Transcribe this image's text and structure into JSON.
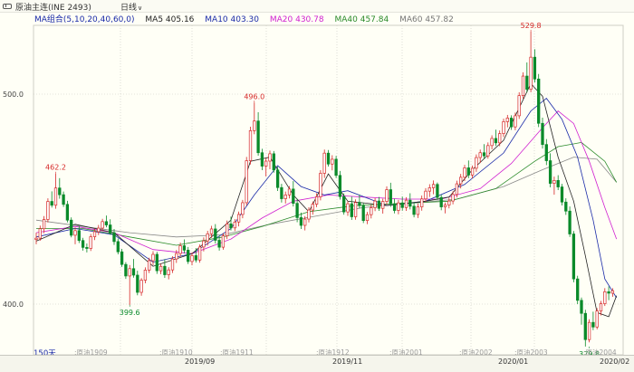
{
  "toolbar": {
    "title": "原油主连(INE 2493)",
    "period": "日线",
    "chevron": "chevron-down-icon",
    "grip_icon": "panel-grip-icon"
  },
  "legend": {
    "group": "MA组合(5,10,20,40,60,0)",
    "ma5": "MA5 405.16",
    "ma10": "MA10 403.30",
    "ma20": "MA20 430.78",
    "ma40": "MA40 457.84",
    "ma60": "MA60 457.82"
  },
  "colors": {
    "up": "#d62828",
    "down": "#0a8a2a",
    "ma5": "#222222",
    "ma10": "#1a2aa8",
    "ma20": "#d020d0",
    "ma40": "#2a8a2a",
    "ma60": "#888888"
  },
  "days_label": "150天",
  "vlabels": [
    {
      "text": "原油1909"
    },
    {
      "text": "原油1910"
    },
    {
      "text": "原油1911"
    },
    {
      "text": "原油1912"
    },
    {
      "text": "原油2001"
    },
    {
      "text": "原油2002"
    },
    {
      "text": "原油2003"
    },
    {
      "text": "原油2004"
    }
  ],
  "chart_data": {
    "type": "candlestick",
    "y_axis": {
      "ticks": [
        {
          "value": 500,
          "label": "500.0"
        },
        {
          "value": 400,
          "label": "400.0"
        }
      ]
    },
    "date_labels": [
      "2019/09",
      "2019/11",
      "2020/01",
      "2020/02"
    ],
    "annotations": [
      {
        "text": "462.2",
        "value": 462.2,
        "index": 5,
        "color": "#d62828",
        "pos": "above"
      },
      {
        "text": "399.6",
        "value": 399.6,
        "index": 24,
        "color": "#0a8a2a",
        "pos": "below"
      },
      {
        "text": "496.0",
        "value": 496.0,
        "index": 56,
        "color": "#d62828",
        "pos": "above"
      },
      {
        "text": "529.8",
        "value": 529.8,
        "index": 127,
        "color": "#d62828",
        "pos": "above"
      },
      {
        "text": "379.8",
        "value": 379.8,
        "index": 142,
        "color": "#0a8a2a",
        "pos": "below"
      }
    ],
    "series_key": "o,h,l,c",
    "candles": [
      [
        430.8,
        434.0,
        428.5,
        431.4
      ],
      [
        431.4,
        437.4,
        430.2,
        435.9
      ],
      [
        435.9,
        441.9,
        433.8,
        440.3
      ],
      [
        440.3,
        450.4,
        438.9,
        448.9
      ],
      [
        448.9,
        453.7,
        446.0,
        447.1
      ],
      [
        447.1,
        462.2,
        445.4,
        455.3
      ],
      [
        455.3,
        460.0,
        450.2,
        452.1
      ],
      [
        452.1,
        453.6,
        446.3,
        447.5
      ],
      [
        447.5,
        449.2,
        438.9,
        440.0
      ],
      [
        440.0,
        441.3,
        431.8,
        432.8
      ],
      [
        432.8,
        436.6,
        428.5,
        435.0
      ],
      [
        435.0,
        437.1,
        429.1,
        430.3
      ],
      [
        430.3,
        431.6,
        425.5,
        427.0
      ],
      [
        427.0,
        428.9,
        424.6,
        426.5
      ],
      [
        426.5,
        433.4,
        425.3,
        432.1
      ],
      [
        432.1,
        436.0,
        430.5,
        434.5
      ],
      [
        434.5,
        437.7,
        432.9,
        436.2
      ],
      [
        436.2,
        440.6,
        434.8,
        439.3
      ],
      [
        439.3,
        442.2,
        436.6,
        437.7
      ],
      [
        437.7,
        440.4,
        433.0,
        434.0
      ],
      [
        434.0,
        435.8,
        428.2,
        429.8
      ],
      [
        429.8,
        431.2,
        423.7,
        424.9
      ],
      [
        424.9,
        426.3,
        417.7,
        418.9
      ],
      [
        418.9,
        420.0,
        412.0,
        413.4
      ],
      [
        413.4,
        418.6,
        399.6,
        416.9
      ],
      [
        416.9,
        421.5,
        412.6,
        413.8
      ],
      [
        413.8,
        415.9,
        404.2,
        405.6
      ],
      [
        405.6,
        412.4,
        404.0,
        411.4
      ],
      [
        411.4,
        417.5,
        409.9,
        416.2
      ],
      [
        416.2,
        422.1,
        414.8,
        420.7
      ],
      [
        420.7,
        425.2,
        418.6,
        423.7
      ],
      [
        423.7,
        424.9,
        414.4,
        415.9
      ],
      [
        415.9,
        419.2,
        414.3,
        418.0
      ],
      [
        418.0,
        421.4,
        412.5,
        414.0
      ],
      [
        414.0,
        417.6,
        411.8,
        416.3
      ],
      [
        416.3,
        422.8,
        414.8,
        421.5
      ],
      [
        421.5,
        425.8,
        419.6,
        424.1
      ],
      [
        424.1,
        429.3,
        422.6,
        427.8
      ],
      [
        427.8,
        430.8,
        424.2,
        425.7
      ],
      [
        425.7,
        427.2,
        419.1,
        420.3
      ],
      [
        420.3,
        424.6,
        418.5,
        423.1
      ],
      [
        423.1,
        426.7,
        419.8,
        421.0
      ],
      [
        421.0,
        428.4,
        419.7,
        427.2
      ],
      [
        427.2,
        431.8,
        425.1,
        430.1
      ],
      [
        430.1,
        434.9,
        427.9,
        433.5
      ],
      [
        433.5,
        437.3,
        431.6,
        435.8
      ],
      [
        435.8,
        438.1,
        428.9,
        430.4
      ],
      [
        430.4,
        432.5,
        425.5,
        427.1
      ],
      [
        427.1,
        433.8,
        425.9,
        432.5
      ],
      [
        432.5,
        439.8,
        431.0,
        438.2
      ],
      [
        438.2,
        441.7,
        435.1,
        436.3
      ],
      [
        436.3,
        440.5,
        434.8,
        439.1
      ],
      [
        439.1,
        444.1,
        437.0,
        442.7
      ],
      [
        442.7,
        449.6,
        440.9,
        448.3
      ],
      [
        448.3,
        470.1,
        446.9,
        468.3
      ],
      [
        468.3,
        484.5,
        466.5,
        482.6
      ],
      [
        482.6,
        496.0,
        480.9,
        487.2
      ],
      [
        487.2,
        491.4,
        470.7,
        472.1
      ],
      [
        472.1,
        474.0,
        463.8,
        465.7
      ],
      [
        465.7,
        469.5,
        460.8,
        468.1
      ],
      [
        468.1,
        473.1,
        464.2,
        471.6
      ],
      [
        471.6,
        472.9,
        462.6,
        463.9
      ],
      [
        463.9,
        465.5,
        453.9,
        455.5
      ],
      [
        455.5,
        457.3,
        448.4,
        450.2
      ],
      [
        450.2,
        453.6,
        447.9,
        452.0
      ],
      [
        452.0,
        456.2,
        450.3,
        454.8
      ],
      [
        454.8,
        458.6,
        446.5,
        448.0
      ],
      [
        448.0,
        450.1,
        439.0,
        441.2
      ],
      [
        441.2,
        443.6,
        435.8,
        437.5
      ],
      [
        437.5,
        441.9,
        435.1,
        440.5
      ],
      [
        440.5,
        446.1,
        438.9,
        444.8
      ],
      [
        444.8,
        448.9,
        442.6,
        447.6
      ],
      [
        447.6,
        452.8,
        446.2,
        451.1
      ],
      [
        451.1,
        463.8,
        449.4,
        462.3
      ],
      [
        462.3,
        473.6,
        460.1,
        471.9
      ],
      [
        471.9,
        473.4,
        465.5,
        466.7
      ],
      [
        466.7,
        470.9,
        463.7,
        469.0
      ],
      [
        469.0,
        470.6,
        460.1,
        461.3
      ],
      [
        461.3,
        463.4,
        449.8,
        451.2
      ],
      [
        451.2,
        452.7,
        442.6,
        443.9
      ],
      [
        443.9,
        449.0,
        442.0,
        447.8
      ],
      [
        447.8,
        451.2,
        440.1,
        441.6
      ],
      [
        441.6,
        449.9,
        440.2,
        448.4
      ],
      [
        448.4,
        452.1,
        445.7,
        446.9
      ],
      [
        446.9,
        448.3,
        438.6,
        439.8
      ],
      [
        439.8,
        443.9,
        438.1,
        442.6
      ],
      [
        442.6,
        447.3,
        440.8,
        445.9
      ],
      [
        445.9,
        450.5,
        444.3,
        449.1
      ],
      [
        449.1,
        451.0,
        444.4,
        445.6
      ],
      [
        445.6,
        450.2,
        443.1,
        448.9
      ],
      [
        448.9,
        456.1,
        447.3,
        454.5
      ],
      [
        454.5,
        457.8,
        446.3,
        447.7
      ],
      [
        447.7,
        450.2,
        443.2,
        444.6
      ],
      [
        444.6,
        449.6,
        442.8,
        448.2
      ],
      [
        448.2,
        451.2,
        444.5,
        446.0
      ],
      [
        446.0,
        450.9,
        444.4,
        449.5
      ],
      [
        449.5,
        452.8,
        445.1,
        446.6
      ],
      [
        446.6,
        448.5,
        441.3,
        442.7
      ],
      [
        442.7,
        447.9,
        441.0,
        446.3
      ],
      [
        446.3,
        451.7,
        444.5,
        450.1
      ],
      [
        450.1,
        455.2,
        448.6,
        453.8
      ],
      [
        453.8,
        457.1,
        451.0,
        455.4
      ],
      [
        455.4,
        458.9,
        452.3,
        457.0
      ],
      [
        457.0,
        457.9,
        449.6,
        450.8
      ],
      [
        450.8,
        452.1,
        444.7,
        446.3
      ],
      [
        446.3,
        448.4,
        443.2,
        447.2
      ],
      [
        447.2,
        450.6,
        445.6,
        449.1
      ],
      [
        449.1,
        453.7,
        447.5,
        452.2
      ],
      [
        452.2,
        458.8,
        450.8,
        457.3
      ],
      [
        457.3,
        462.0,
        455.1,
        460.4
      ],
      [
        460.4,
        466.3,
        458.6,
        464.9
      ],
      [
        464.9,
        468.4,
        460.0,
        461.5
      ],
      [
        461.5,
        466.0,
        459.9,
        464.7
      ],
      [
        464.7,
        471.3,
        463.0,
        469.8
      ],
      [
        469.8,
        473.6,
        467.2,
        472.1
      ],
      [
        472.1,
        476.2,
        469.1,
        470.6
      ],
      [
        470.6,
        477.0,
        469.3,
        475.5
      ],
      [
        475.5,
        480.4,
        473.7,
        478.9
      ],
      [
        478.9,
        483.1,
        475.3,
        476.8
      ],
      [
        476.8,
        482.7,
        475.2,
        481.2
      ],
      [
        481.2,
        488.3,
        479.5,
        486.9
      ],
      [
        486.9,
        490.1,
        484.2,
        488.6
      ],
      [
        488.6,
        489.9,
        483.0,
        484.4
      ],
      [
        484.4,
        491.2,
        482.8,
        489.7
      ],
      [
        489.7,
        500.9,
        488.2,
        499.3
      ],
      [
        499.3,
        510.4,
        497.8,
        508.6
      ],
      [
        508.6,
        515.1,
        500.8,
        502.3
      ],
      [
        502.3,
        529.8,
        500.9,
        517.6
      ],
      [
        517.6,
        521.4,
        505.6,
        507.2
      ],
      [
        507.2,
        509.6,
        484.3,
        486.1
      ],
      [
        486.1,
        488.8,
        474.1,
        476.0
      ],
      [
        476.0,
        478.6,
        466.2,
        468.3
      ],
      [
        468.3,
        471.8,
        455.6,
        457.5
      ],
      [
        457.5,
        460.7,
        452.1,
        458.9
      ],
      [
        458.9,
        461.4,
        454.3,
        455.8
      ],
      [
        455.8,
        457.3,
        447.0,
        448.6
      ],
      [
        448.6,
        450.4,
        442.5,
        444.3
      ],
      [
        444.3,
        446.5,
        432.0,
        433.4
      ],
      [
        433.4,
        434.8,
        410.4,
        412.0
      ],
      [
        412.0,
        413.5,
        400.0,
        401.8
      ],
      [
        401.8,
        403.1,
        390.2,
        395.6
      ],
      [
        395.6,
        397.3,
        379.8,
        383.1
      ],
      [
        383.1,
        392.8,
        381.8,
        391.3
      ],
      [
        391.3,
        396.4,
        387.6,
        389.1
      ],
      [
        389.1,
        398.1,
        388.0,
        396.7
      ],
      [
        396.7,
        401.5,
        394.6,
        400.2
      ],
      [
        400.2,
        407.6,
        399.1,
        405.9
      ],
      [
        405.9,
        408.4,
        401.9,
        405.2
      ],
      [
        405.2,
        407.6,
        403.5,
        406.4
      ]
    ],
    "ma5": [
      [
        0,
        430
      ],
      [
        10,
        438
      ],
      [
        20,
        434
      ],
      [
        30,
        418
      ],
      [
        40,
        424
      ],
      [
        50,
        440
      ],
      [
        55,
        468
      ],
      [
        60,
        470
      ],
      [
        66,
        452
      ],
      [
        70,
        444
      ],
      [
        75,
        462
      ],
      [
        80,
        449
      ],
      [
        90,
        447
      ],
      [
        100,
        449
      ],
      [
        106,
        451
      ],
      [
        112,
        464
      ],
      [
        120,
        478
      ],
      [
        127,
        505
      ],
      [
        130,
        499
      ],
      [
        134,
        470
      ],
      [
        138,
        449
      ],
      [
        141,
        423
      ],
      [
        144,
        396
      ],
      [
        147,
        394
      ],
      [
        149,
        404
      ]
    ],
    "ma10": [
      [
        0,
        432
      ],
      [
        10,
        436
      ],
      [
        20,
        433
      ],
      [
        30,
        420
      ],
      [
        40,
        424
      ],
      [
        50,
        436
      ],
      [
        56,
        452
      ],
      [
        62,
        466
      ],
      [
        68,
        456
      ],
      [
        74,
        452
      ],
      [
        80,
        454
      ],
      [
        90,
        447
      ],
      [
        100,
        449
      ],
      [
        110,
        457
      ],
      [
        120,
        472
      ],
      [
        127,
        492
      ],
      [
        131,
        498
      ],
      [
        135,
        488
      ],
      [
        139,
        470
      ],
      [
        143,
        440
      ],
      [
        146,
        412
      ],
      [
        149,
        403
      ]
    ],
    "ma20": [
      [
        0,
        434
      ],
      [
        10,
        437
      ],
      [
        20,
        434
      ],
      [
        30,
        426
      ],
      [
        40,
        424
      ],
      [
        50,
        431
      ],
      [
        58,
        441
      ],
      [
        66,
        449
      ],
      [
        75,
        452
      ],
      [
        84,
        451
      ],
      [
        94,
        450
      ],
      [
        104,
        450
      ],
      [
        114,
        455
      ],
      [
        122,
        467
      ],
      [
        130,
        484
      ],
      [
        134,
        492
      ],
      [
        138,
        486
      ],
      [
        142,
        468
      ],
      [
        146,
        446
      ],
      [
        149,
        431
      ]
    ],
    "ma40": [
      [
        0,
        436
      ],
      [
        12,
        436
      ],
      [
        24,
        432
      ],
      [
        36,
        428
      ],
      [
        48,
        432
      ],
      [
        58,
        437
      ],
      [
        70,
        444
      ],
      [
        82,
        447
      ],
      [
        94,
        448
      ],
      [
        106,
        449
      ],
      [
        118,
        455
      ],
      [
        128,
        468
      ],
      [
        134,
        475
      ],
      [
        140,
        477
      ],
      [
        146,
        468
      ],
      [
        149,
        458
      ]
    ],
    "ma60": [
      [
        0,
        440
      ],
      [
        12,
        437
      ],
      [
        24,
        434
      ],
      [
        36,
        432
      ],
      [
        48,
        433
      ],
      [
        60,
        438
      ],
      [
        72,
        442
      ],
      [
        84,
        446
      ],
      [
        96,
        448
      ],
      [
        108,
        450
      ],
      [
        120,
        456
      ],
      [
        130,
        464
      ],
      [
        138,
        470
      ],
      [
        144,
        469
      ],
      [
        149,
        458
      ]
    ]
  }
}
